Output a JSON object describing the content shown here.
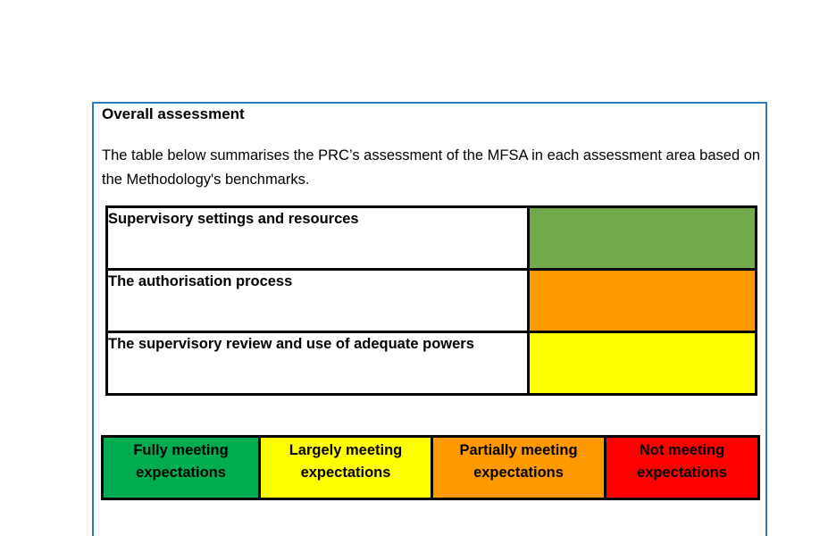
{
  "colors": {
    "frame_border": "#2B7BC4",
    "table_border": "#000000",
    "rating_green": "#6FAB4A",
    "rating_orange": "#FF9900",
    "rating_yellow": "#FFFF00",
    "legend_green": "#00AC50",
    "legend_yellow": "#FFFF00",
    "legend_orange": "#FF9900",
    "legend_red": "#FF0000"
  },
  "section": {
    "title": "Overall assessment",
    "intro": "The table below summarises the PRC’s assessment of the MFSA in each assessment area based on the Methodology's benchmarks."
  },
  "assessment_table": {
    "rows": [
      {
        "area": "Supervisory settings and resources",
        "rating": "green",
        "rating_color": "#6FAB4A"
      },
      {
        "area": "The authorisation process",
        "rating": "orange",
        "rating_color": "#FF9900"
      },
      {
        "area": "The supervisory review and use of adequate powers",
        "rating": "yellow",
        "rating_color": "#FFFF00"
      }
    ]
  },
  "legend": {
    "items": [
      {
        "label": "Fully meeting expectations",
        "color": "#00AC50"
      },
      {
        "label": "Largely meeting expectations",
        "color": "#FFFF00"
      },
      {
        "label": "Partially meeting expectations",
        "color": "#FF9900"
      },
      {
        "label": "Not meeting expectations",
        "color": "#FF0000"
      }
    ]
  }
}
